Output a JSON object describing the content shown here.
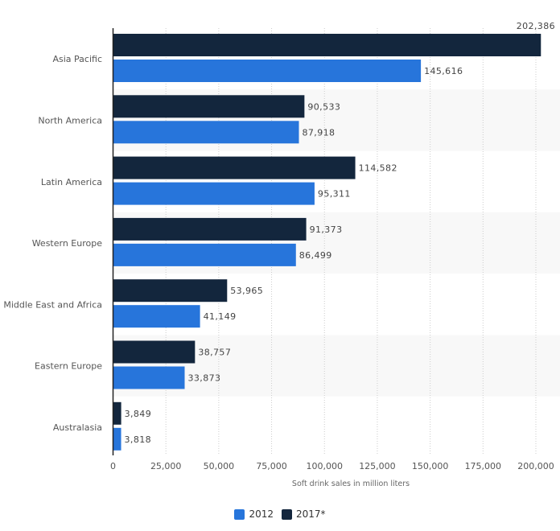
{
  "chart_data": {
    "type": "bar",
    "orientation": "horizontal",
    "title": "",
    "xlabel": "Soft drink sales in million liters",
    "ylabel": "",
    "xlim": [
      0,
      212000
    ],
    "grid": true,
    "legend_position": "bottom-center",
    "categories": [
      "Asia Pacific",
      "North America",
      "Latin America",
      "Western Europe",
      "Middle East and Africa",
      "Eastern Europe",
      "Australasia"
    ],
    "x_ticks": [
      0,
      25000,
      50000,
      75000,
      100000,
      125000,
      150000,
      175000,
      200000
    ],
    "x_tick_labels": [
      "0",
      "25,000",
      "50,000",
      "75,000",
      "100,000",
      "125,000",
      "150,000",
      "175,000",
      "200,000"
    ],
    "series": [
      {
        "name": "2017*",
        "color": "#13263d",
        "values": [
          202386,
          90533,
          114582,
          91373,
          53965,
          38757,
          3849
        ],
        "labels": [
          "202,386",
          "90,533",
          "114,582",
          "91,373",
          "53,965",
          "38,757",
          "3,849"
        ]
      },
      {
        "name": "2012",
        "color": "#2775db",
        "values": [
          145616,
          87918,
          95311,
          86499,
          41149,
          33873,
          3818
        ],
        "labels": [
          "145,616",
          "87,918",
          "95,311",
          "86,499",
          "41,149",
          "33,873",
          "3,818"
        ]
      }
    ]
  },
  "legend": [
    {
      "label": "2012",
      "color": "#2775db"
    },
    {
      "label": "2017*",
      "color": "#13263d"
    }
  ]
}
